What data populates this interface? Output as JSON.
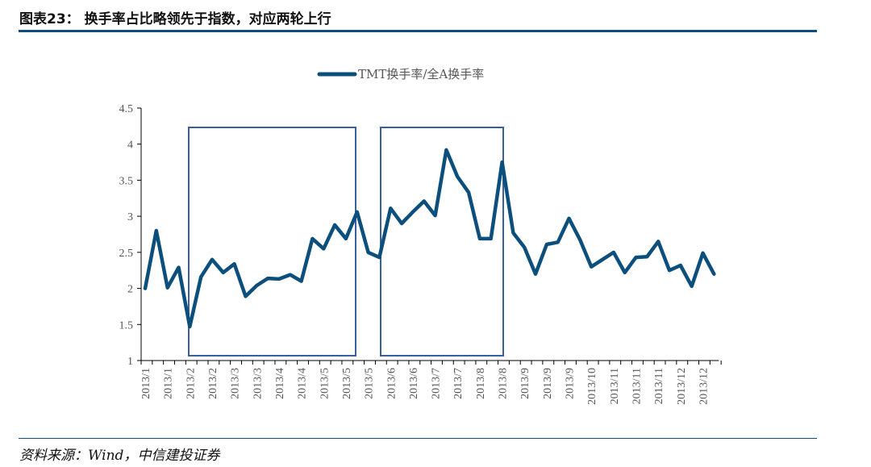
{
  "header": {
    "title": "图表23： 换手率占比略领先于指数，对应两轮上行"
  },
  "footer": {
    "source": "资料来源：Wind，中信建投证券"
  },
  "colors": {
    "line": "#0d4f7c",
    "highlight_box": "#3a5f9e",
    "rule": "#0f4c81"
  },
  "chart_data": {
    "type": "line",
    "title": "",
    "xlabel": "",
    "ylabel": "",
    "ylim": [
      1,
      4.5
    ],
    "yticks": [
      "1",
      "1.5",
      "2",
      "2.5",
      "3",
      "3.5",
      "4",
      "4.5"
    ],
    "grid": false,
    "legend": "top-center",
    "x_tick_labels": [
      "2013/1",
      "2013/1",
      "2013/2",
      "2013/2",
      "2013/3",
      "2013/3",
      "2013/4",
      "2013/4",
      "2013/5",
      "2013/5",
      "2013/5",
      "2013/6",
      "2013/6",
      "2013/7",
      "2013/7",
      "2013/8",
      "2013/8",
      "2013/9",
      "2013/9",
      "2013/9",
      "2013/10",
      "2013/11",
      "2013/11",
      "2013/11",
      "2013/12",
      "2013/12"
    ],
    "series": [
      {
        "name": "TMT换手率/全A换手率",
        "values": [
          2.0,
          2.8,
          2.01,
          2.29,
          1.47,
          2.16,
          2.4,
          2.22,
          2.34,
          1.89,
          2.04,
          2.14,
          2.13,
          2.19,
          2.1,
          2.69,
          2.55,
          2.88,
          2.69,
          3.06,
          2.5,
          2.43,
          3.11,
          2.9,
          3.06,
          3.21,
          3.01,
          3.92,
          3.55,
          3.33,
          2.69,
          2.69,
          3.75,
          2.77,
          2.57,
          2.2,
          2.61,
          2.64,
          2.97,
          2.67,
          2.3,
          2.4,
          2.5,
          2.22,
          2.43,
          2.44,
          2.65,
          2.25,
          2.32,
          2.03,
          2.49,
          2.2
        ]
      }
    ]
  }
}
